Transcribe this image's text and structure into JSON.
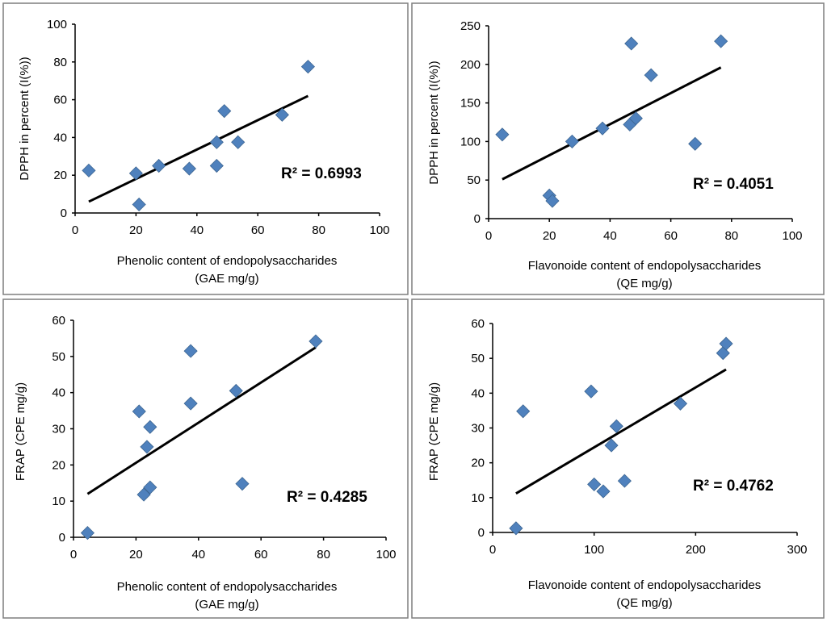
{
  "chart_data": [
    {
      "type": "scatter",
      "id": "phenolic-dpph",
      "xlabel": [
        "Phenolic content of endopolysaccharides",
        "(GAE mg/g)"
      ],
      "ylabel": "DPPH  in percent (I(%))",
      "xlim": [
        0,
        100
      ],
      "ylim": [
        0,
        100
      ],
      "xticks": [
        "0",
        "20",
        "40",
        "60",
        "80",
        "100"
      ],
      "yticks": [
        "0",
        "20",
        "40",
        "60",
        "80",
        "100"
      ],
      "points": [
        {
          "x": 4.5,
          "y": 22.5
        },
        {
          "x": 20.0,
          "y": 21.0
        },
        {
          "x": 21.0,
          "y": 4.5
        },
        {
          "x": 27.5,
          "y": 25.0
        },
        {
          "x": 37.5,
          "y": 23.5
        },
        {
          "x": 46.5,
          "y": 37.5
        },
        {
          "x": 46.5,
          "y": 25.0
        },
        {
          "x": 49.0,
          "y": 54.0
        },
        {
          "x": 53.5,
          "y": 37.5
        },
        {
          "x": 68.0,
          "y": 52.0
        },
        {
          "x": 76.5,
          "y": 77.5
        }
      ],
      "trendline": {
        "x1": 4.5,
        "y1": 6.0,
        "x2": 76.5,
        "y2": 62.0
      },
      "r2_label": "R² = 0.6993"
    },
    {
      "type": "scatter",
      "id": "flavonoide-dpph",
      "xlabel": [
        "Flavonoide content of endopolysaccharides",
        "(QE mg/g)"
      ],
      "ylabel": "DPPH in percent (I(%))",
      "xlim": [
        0,
        100
      ],
      "ylim": [
        0,
        250
      ],
      "xticks": [
        "0",
        "20",
        "40",
        "60",
        "80",
        "100"
      ],
      "yticks": [
        "0",
        "50",
        "100",
        "150",
        "200",
        "250"
      ],
      "points": [
        {
          "x": 4.5,
          "y": 109
        },
        {
          "x": 20.0,
          "y": 30
        },
        {
          "x": 21.0,
          "y": 23
        },
        {
          "x": 27.5,
          "y": 100
        },
        {
          "x": 37.5,
          "y": 117
        },
        {
          "x": 46.5,
          "y": 122
        },
        {
          "x": 47.0,
          "y": 227
        },
        {
          "x": 48.5,
          "y": 130
        },
        {
          "x": 53.5,
          "y": 186
        },
        {
          "x": 68.0,
          "y": 97
        },
        {
          "x": 76.5,
          "y": 230
        }
      ],
      "trendline": {
        "x1": 4.5,
        "y1": 51,
        "x2": 76.5,
        "y2": 196
      },
      "r2_label": "R² = 0.4051"
    },
    {
      "type": "scatter",
      "id": "phenolic-frap",
      "xlabel": [
        "Phenolic content of endopolysaccharides",
        "(GAE mg/g)"
      ],
      "ylabel": "FRAP (CPE mg/g)",
      "xlim": [
        0,
        100
      ],
      "ylim": [
        0,
        60
      ],
      "xticks": [
        "0",
        "20",
        "40",
        "60",
        "80",
        "100"
      ],
      "yticks": [
        "0",
        "10",
        "20",
        "30",
        "40",
        "50",
        "60"
      ],
      "points": [
        {
          "x": 4.5,
          "y": 1.2
        },
        {
          "x": 21.0,
          "y": 34.8
        },
        {
          "x": 22.5,
          "y": 11.8
        },
        {
          "x": 23.5,
          "y": 25.0
        },
        {
          "x": 24.5,
          "y": 30.5
        },
        {
          "x": 24.5,
          "y": 13.8
        },
        {
          "x": 37.5,
          "y": 37.0
        },
        {
          "x": 37.5,
          "y": 51.5
        },
        {
          "x": 52.0,
          "y": 40.5
        },
        {
          "x": 54.0,
          "y": 14.8
        },
        {
          "x": 77.5,
          "y": 54.2
        }
      ],
      "trendline": {
        "x1": 4.5,
        "y1": 12.0,
        "x2": 77.5,
        "y2": 52.5
      },
      "r2_label": "R² = 0.4285"
    },
    {
      "type": "scatter",
      "id": "flavonoide-frap",
      "xlabel": [
        "Flavonoide content of endopolysaccharides",
        "(QE mg/g)"
      ],
      "ylabel": "FRAP (CPE mg/g)",
      "xlim": [
        0,
        300
      ],
      "ylim": [
        0,
        60
      ],
      "xticks": [
        "0",
        "100",
        "200",
        "300"
      ],
      "yticks": [
        "0",
        "10",
        "20",
        "30",
        "40",
        "50",
        "60"
      ],
      "points": [
        {
          "x": 23,
          "y": 1.2
        },
        {
          "x": 30,
          "y": 34.8
        },
        {
          "x": 97,
          "y": 40.5
        },
        {
          "x": 100,
          "y": 13.8
        },
        {
          "x": 109,
          "y": 11.8
        },
        {
          "x": 117,
          "y": 25.0
        },
        {
          "x": 122,
          "y": 30.5
        },
        {
          "x": 130,
          "y": 14.8
        },
        {
          "x": 185,
          "y": 37.0
        },
        {
          "x": 227,
          "y": 51.5
        },
        {
          "x": 230,
          "y": 54.2
        }
      ],
      "trendline": {
        "x1": 23,
        "y1": 11.2,
        "x2": 230,
        "y2": 46.8
      },
      "r2_label": "R² = 0.4762"
    }
  ]
}
